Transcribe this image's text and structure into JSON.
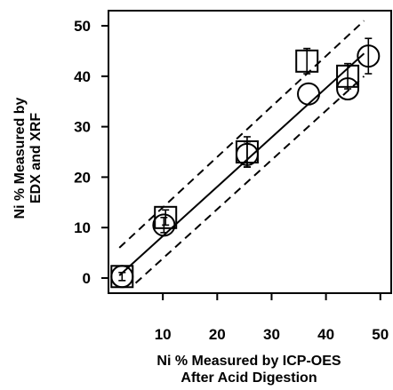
{
  "chart_data": {
    "type": "scatter",
    "xlabel_line1": "Ni % Measured by ICP-OES",
    "xlabel_line2": "After Acid Digestion",
    "ylabel_line1": "Ni % Measured by",
    "ylabel_line2": "EDX and XRF",
    "xlim": [
      0,
      52
    ],
    "ylim": [
      -3,
      53
    ],
    "x_ticks": [
      10,
      20,
      30,
      40,
      50
    ],
    "y_ticks": [
      0,
      10,
      20,
      30,
      40,
      50
    ],
    "grid": false,
    "legend": "none",
    "series": [
      {
        "marker": "circle",
        "points": [
          {
            "x": 2.5,
            "y": 0.3,
            "err": 0.8
          },
          {
            "x": 10.2,
            "y": 10.5,
            "err": 1.5
          },
          {
            "x": 25.5,
            "y": 24.5,
            "err": 2.5
          },
          {
            "x": 36.8,
            "y": 36.5,
            "err": 0
          },
          {
            "x": 44.0,
            "y": 37.5,
            "err": 0
          },
          {
            "x": 47.8,
            "y": 44.0,
            "err": 3.5
          }
        ]
      },
      {
        "marker": "square",
        "points": [
          {
            "x": 2.5,
            "y": 0.3,
            "err": 0
          },
          {
            "x": 10.5,
            "y": 12.0,
            "err": 1.5
          },
          {
            "x": 25.5,
            "y": 25.0,
            "err": 3.0
          },
          {
            "x": 36.5,
            "y": 43.0,
            "err": 2.5
          },
          {
            "x": 44.0,
            "y": 40.0,
            "err": 2.5
          }
        ]
      }
    ],
    "reference_lines": [
      {
        "style": "solid",
        "from": [
          2,
          0.5
        ],
        "to": [
          47,
          44.5
        ]
      },
      {
        "style": "dashed",
        "from": [
          2,
          6
        ],
        "to": [
          47,
          51
        ]
      },
      {
        "style": "dashed",
        "from": [
          5,
          -1
        ],
        "to": [
          47,
          40
        ]
      }
    ]
  }
}
